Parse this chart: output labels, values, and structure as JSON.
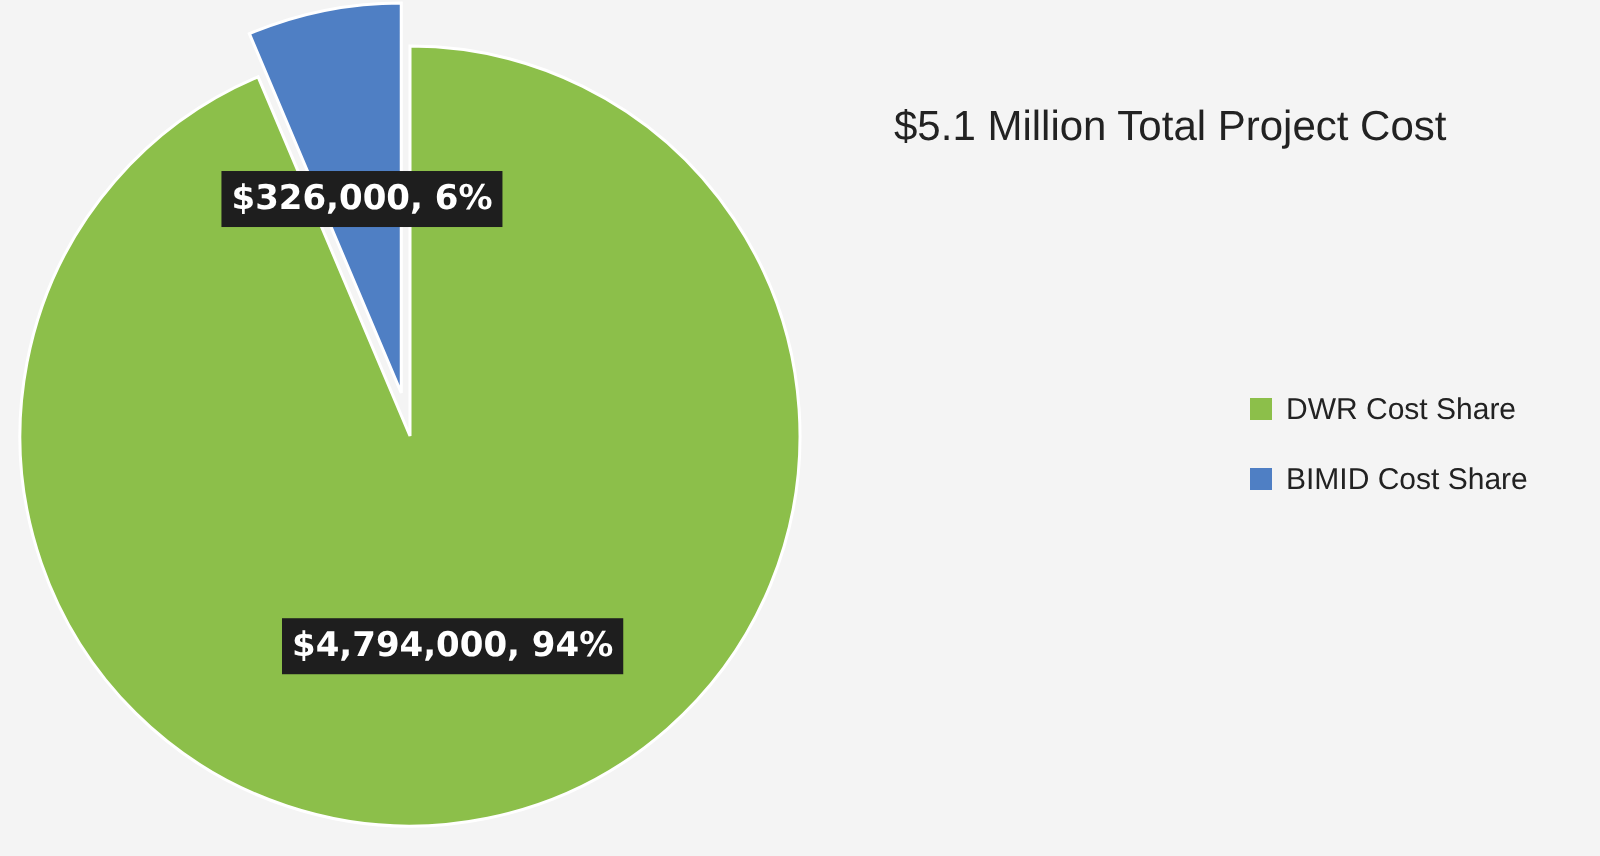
{
  "chart_data": {
    "type": "pie",
    "title": "$5.1 Million Total Project Cost",
    "categories": [
      "DWR Cost Share",
      "BIMID Cost Share"
    ],
    "values": [
      4794000,
      326000
    ],
    "colors": [
      "#8cbf4a",
      "#4f7fc4"
    ],
    "value_labels": [
      "$4,794,000, 94%",
      "$326,000, 6%"
    ],
    "legend": "right"
  }
}
